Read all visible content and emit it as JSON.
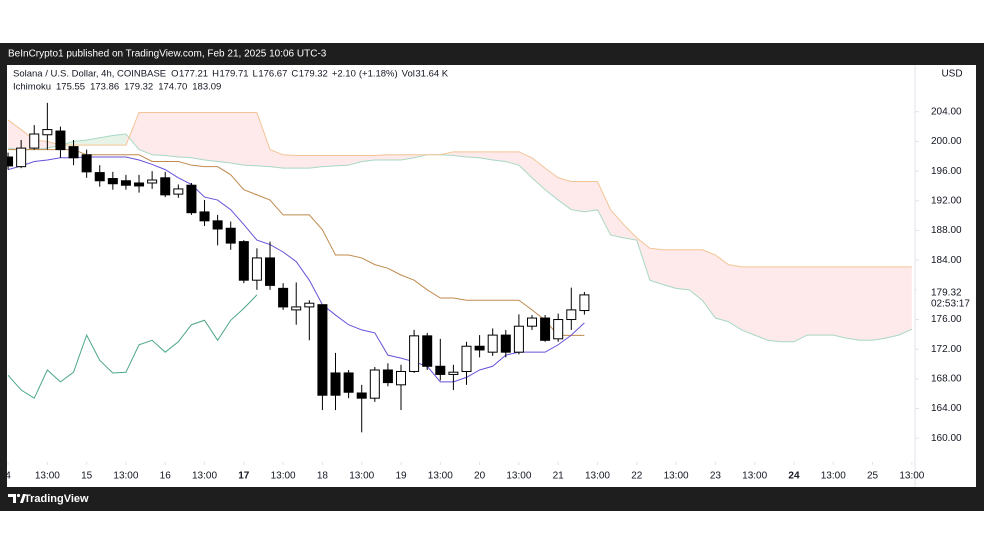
{
  "header": {
    "text": "BeInCrypto1 published on TradingView.com, Feb 21, 2025 10:06 UTC-3"
  },
  "footer": {
    "brand": "TradingView"
  },
  "chart_data": {
    "type": "candlestick",
    "title": "Solana / U.S. Dollar, 4h, COINBASE",
    "currency": "USD",
    "ohlc_letters": [
      "O",
      "H",
      "L",
      "C"
    ],
    "change": "+2.10",
    "change_percent": "(+1.18%)",
    "volume_label": "Vol",
    "volume": "31.64 K",
    "countdown": "02:53:17",
    "up_color": "#ffffff",
    "down_color": "#000000",
    "edge_color": "#000000",
    "candles": {
      "open": [
        197.9,
        196.6,
        199.1,
        200.9,
        201.4,
        199.3,
        198.2,
        195.8,
        195.0,
        194.7,
        194.4,
        194.4,
        195.1,
        192.9,
        194.1,
        190.5,
        189.3,
        188.3,
        186.5,
        181.3,
        184.3,
        180.2,
        177.3,
        177.7,
        178.0,
        168.8,
        168.8,
        166.1,
        165.4,
        169.2,
        167.2,
        169.0,
        173.8,
        169.7,
        168.6,
        169.0,
        172.4,
        171.6,
        173.9,
        171.6,
        175.1,
        176.2,
        173.4,
        176.0,
        177.21
      ],
      "high": [
        198.5,
        200.2,
        202.2,
        205.2,
        202.0,
        200.2,
        198.9,
        196.8,
        195.9,
        195.5,
        195.5,
        196.0,
        195.9,
        194.2,
        194.4,
        192.1,
        190.1,
        189.2,
        186.7,
        185.6,
        186.5,
        180.9,
        181.0,
        178.6,
        178.0,
        171.5,
        169.2,
        167.2,
        169.6,
        170.1,
        169.9,
        174.6,
        174.2,
        173.4,
        169.9,
        173.0,
        173.9,
        174.8,
        174.6,
        176.7,
        176.6,
        176.6,
        176.8,
        180.3,
        179.71
      ],
      "low": [
        196.2,
        196.4,
        198.9,
        198.9,
        197.8,
        196.8,
        195.1,
        193.9,
        193.5,
        193.5,
        193.1,
        193.6,
        192.5,
        192.4,
        190.1,
        188.6,
        186.0,
        185.4,
        180.9,
        180.0,
        180.0,
        177.3,
        175.3,
        173.2,
        163.8,
        163.8,
        165.4,
        160.8,
        164.9,
        167.0,
        163.8,
        168.8,
        169.2,
        167.8,
        166.5,
        167.2,
        170.9,
        171.1,
        170.9,
        171.3,
        174.6,
        173.0,
        173.0,
        174.6,
        176.67
      ],
      "close": [
        196.7,
        199.1,
        201.0,
        201.6,
        198.9,
        197.8,
        195.9,
        194.7,
        194.3,
        194.1,
        194.0,
        194.8,
        192.8,
        193.6,
        190.4,
        189.3,
        188.2,
        186.3,
        181.3,
        184.3,
        180.6,
        177.7,
        177.7,
        178.2,
        165.8,
        165.8,
        166.2,
        165.4,
        169.2,
        167.5,
        169.0,
        173.8,
        169.7,
        168.6,
        168.9,
        172.4,
        171.9,
        173.9,
        171.6,
        175.1,
        176.2,
        173.2,
        176.0,
        177.3,
        179.32
      ]
    },
    "indicator": {
      "name": "Ichimoku",
      "lines": [
        {
          "color": "#6a4fd8",
          "label": "175.55",
          "values": [
            196.2,
            196.7,
            197.3,
            197.5,
            197.8,
            197.8,
            197.9,
            197.9,
            197.9,
            197.9,
            197.5,
            196.9,
            196.2,
            195.1,
            194.2,
            192.5,
            192.1,
            190.8,
            188.8,
            186.7,
            186.1,
            185.1,
            183.8,
            181.3,
            178.0,
            176.6,
            175.3,
            174.6,
            174.2,
            171.2,
            170.8,
            170.3,
            169.7,
            167.6,
            167.6,
            168.2,
            169.2,
            169.7,
            171.2,
            171.6,
            171.6,
            171.6,
            172.6,
            173.9,
            175.55
          ]
        },
        {
          "color": "#c08a4e",
          "label": "173.86",
          "values": [
            198.9,
            198.9,
            198.9,
            198.9,
            198.9,
            198.9,
            198.2,
            198.2,
            198.2,
            198.2,
            198.2,
            197.3,
            197.3,
            197.3,
            196.8,
            196.6,
            196.6,
            195.5,
            193.5,
            192.8,
            192.1,
            190.1,
            190.1,
            190.1,
            188.1,
            184.7,
            184.7,
            184.3,
            183.4,
            182.9,
            182.0,
            181.3,
            180.0,
            178.9,
            178.9,
            178.6,
            178.6,
            178.6,
            178.6,
            178.6,
            177.3,
            175.9,
            173.86,
            173.86,
            173.86
          ]
        },
        {
          "color": "#4ca783",
          "label": "179.32",
          "values": [
            168.5,
            166.5,
            165.4,
            169.2,
            167.6,
            168.9,
            173.9,
            170.5,
            168.8,
            168.9,
            172.6,
            173.2,
            171.6,
            173.0,
            175.3,
            175.9,
            173.2,
            175.9,
            177.5,
            179.32
          ]
        },
        {
          "color": "#a8d8c4",
          "label": "174.70",
          "values": [
            199.1,
            198.9,
            198.9,
            199.1,
            199.5,
            200.0,
            200.2,
            200.5,
            200.8,
            201.0,
            198.9,
            198.2,
            198.1,
            197.9,
            197.8,
            197.5,
            197.3,
            197.1,
            196.8,
            196.7,
            196.6,
            196.4,
            196.4,
            196.4,
            196.6,
            196.7,
            196.8,
            197.3,
            197.5,
            197.5,
            197.5,
            197.8,
            198.2,
            198.2,
            198.1,
            197.9,
            197.8,
            197.5,
            197.3,
            196.8,
            195.1,
            193.5,
            192.1,
            190.8,
            190.5,
            190.8,
            187.4,
            187.0,
            186.7,
            181.3,
            180.7,
            180.2,
            180.0,
            178.6,
            176.2,
            175.7,
            174.6,
            173.9,
            173.2,
            173.0,
            173.0,
            173.9,
            173.9,
            173.9,
            173.5,
            173.2,
            173.2,
            173.5,
            173.9,
            174.7
          ]
        },
        {
          "color": "#f3c595",
          "label": "183.09",
          "values": [
            202.9,
            201.6,
            200.2,
            200.0,
            199.5,
            199.5,
            199.5,
            199.5,
            199.5,
            199.5,
            203.9,
            203.9,
            203.9,
            203.9,
            203.9,
            203.9,
            203.9,
            203.9,
            203.9,
            203.9,
            198.9,
            198.2,
            198.1,
            198.1,
            198.1,
            198.1,
            198.1,
            198.1,
            198.1,
            198.2,
            198.2,
            198.2,
            198.2,
            198.2,
            198.6,
            198.6,
            198.6,
            198.6,
            198.6,
            198.6,
            197.8,
            196.4,
            195.1,
            194.6,
            194.6,
            194.6,
            190.8,
            188.8,
            187.0,
            185.6,
            185.4,
            185.4,
            185.4,
            185.4,
            184.7,
            183.4,
            183.09,
            183.09,
            183.09,
            183.09,
            183.09,
            183.09,
            183.09,
            183.09,
            183.09,
            183.09,
            183.09,
            183.09,
            183.09,
            183.09
          ]
        }
      ],
      "cloud": {
        "rise_color": "rgba(67,160,71,0.13)",
        "fall_color": "rgba(242,54,69,0.11)"
      }
    },
    "xlim": [
      -0.08,
      69.24
    ],
    "xticks": [
      {
        "value": 0,
        "label": "4"
      },
      {
        "value": 3,
        "label": "13:00"
      },
      {
        "value": 6,
        "label": "15"
      },
      {
        "value": 9,
        "label": "13:00"
      },
      {
        "value": 12,
        "label": "16"
      },
      {
        "value": 15,
        "label": "13:00"
      },
      {
        "value": 18,
        "label": "17",
        "bold": true
      },
      {
        "value": 21,
        "label": "13:00"
      },
      {
        "value": 24,
        "label": "18"
      },
      {
        "value": 27,
        "label": "13:00"
      },
      {
        "value": 30,
        "label": "19"
      },
      {
        "value": 33,
        "label": "13:00"
      },
      {
        "value": 36,
        "label": "20"
      },
      {
        "value": 39,
        "label": "13:00"
      },
      {
        "value": 42,
        "label": "21"
      },
      {
        "value": 45,
        "label": "13:00"
      },
      {
        "value": 48,
        "label": "22"
      },
      {
        "value": 51,
        "label": "13:00"
      },
      {
        "value": 54,
        "label": "23"
      },
      {
        "value": 57,
        "label": "13:00"
      },
      {
        "value": 60,
        "label": "24",
        "bold": true
      },
      {
        "value": 63,
        "label": "13:00"
      },
      {
        "value": 66,
        "label": "25"
      },
      {
        "value": 69,
        "label": "13:00"
      }
    ],
    "ylim": [
      156.8,
      210.3
    ],
    "yticks": [
      {
        "value": 160,
        "label": "160.00"
      },
      {
        "value": 164,
        "label": "164.00"
      },
      {
        "value": 168,
        "label": "168.00"
      },
      {
        "value": 172,
        "label": "172.00"
      },
      {
        "value": 176,
        "label": "176.00"
      },
      {
        "value": 180,
        "label": "180.00"
      },
      {
        "value": 184,
        "label": "184.00"
      },
      {
        "value": 188,
        "label": "188.00"
      },
      {
        "value": 192,
        "label": "192.00"
      },
      {
        "value": 196,
        "label": "196.00"
      },
      {
        "value": 200,
        "label": "200.00"
      },
      {
        "value": 204,
        "label": "204.00"
      }
    ],
    "grid": false
  }
}
